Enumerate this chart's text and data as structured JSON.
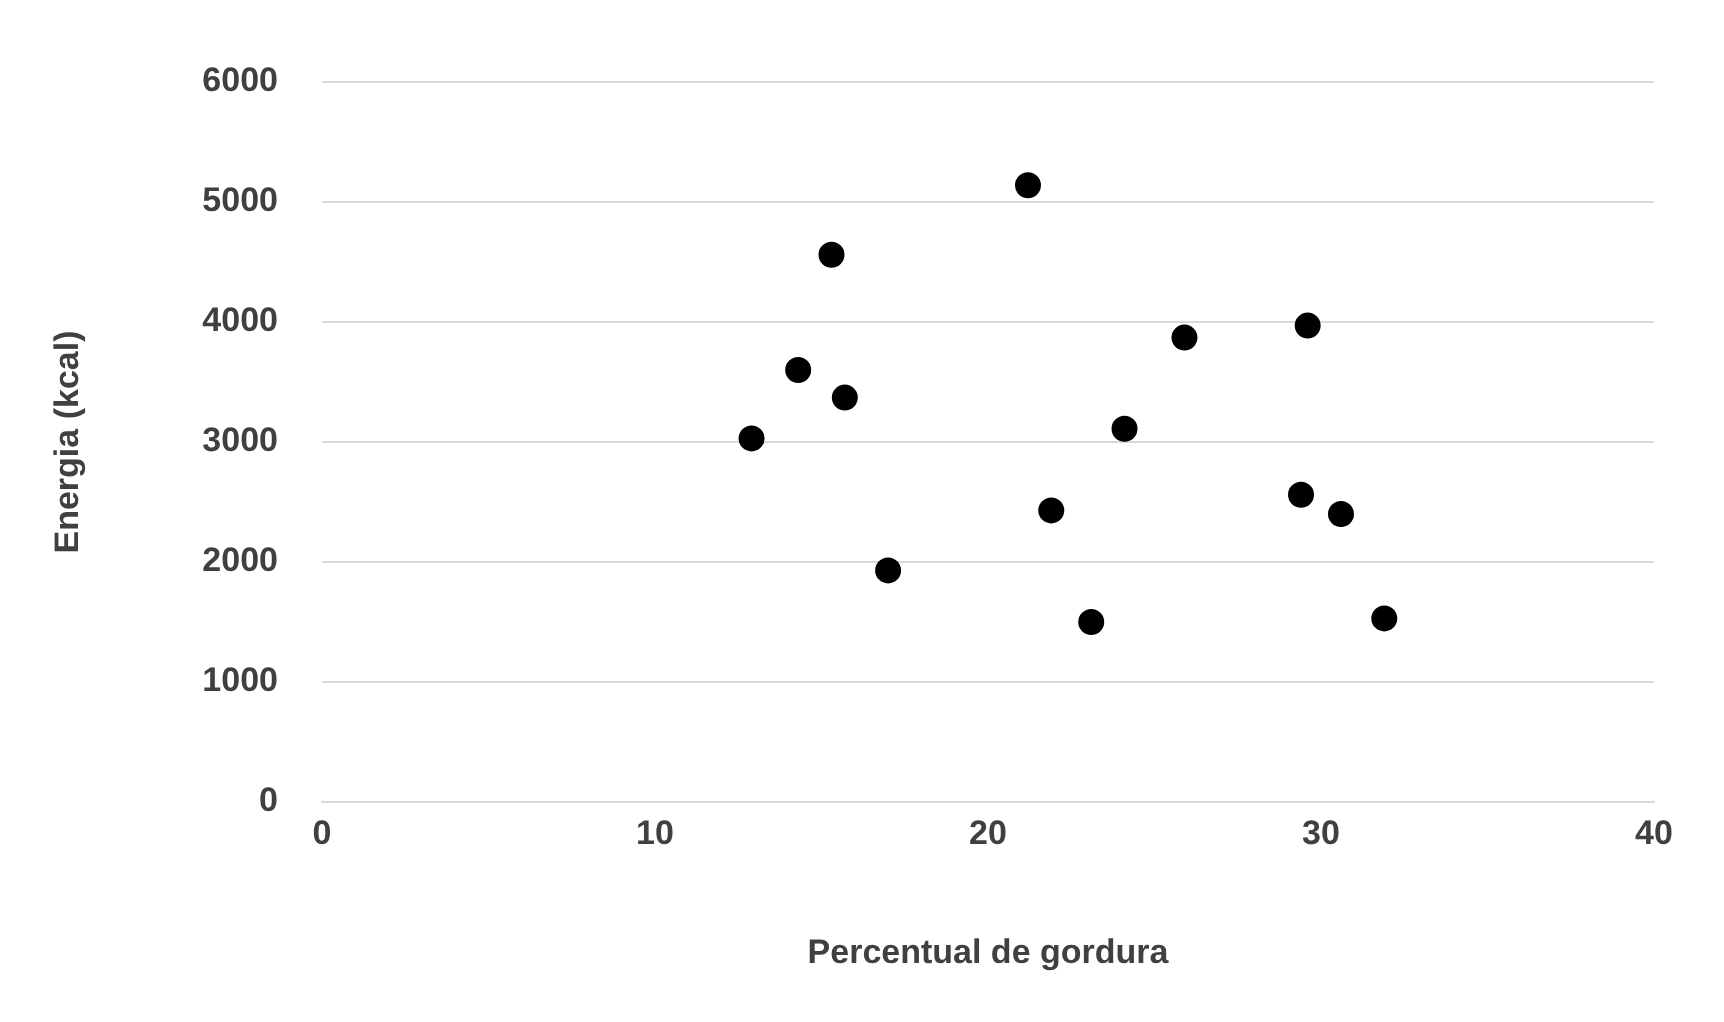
{
  "chart_data": {
    "type": "scatter",
    "xlabel": "Percentual de gordura",
    "ylabel": "Energia (kcal)",
    "x": [
      12.9,
      14.3,
      15.3,
      15.7,
      17.0,
      21.2,
      21.9,
      23.1,
      24.1,
      25.9,
      29.4,
      29.6,
      30.6,
      31.9
    ],
    "series": [
      {
        "color": "#000000",
        "values": [
          3030,
          3600,
          4560,
          3370,
          1930,
          5140,
          2430,
          1500,
          3110,
          3870,
          2560,
          3970,
          2400,
          1530
        ]
      }
    ],
    "xlim": [
      0,
      40
    ],
    "xticks": [
      0,
      10,
      20,
      30,
      40
    ],
    "ylim": [
      0,
      6000
    ],
    "yticks": [
      0,
      1000,
      2000,
      3000,
      4000,
      5000,
      6000
    ],
    "grid": "y",
    "marker": "circle",
    "legend": false
  }
}
